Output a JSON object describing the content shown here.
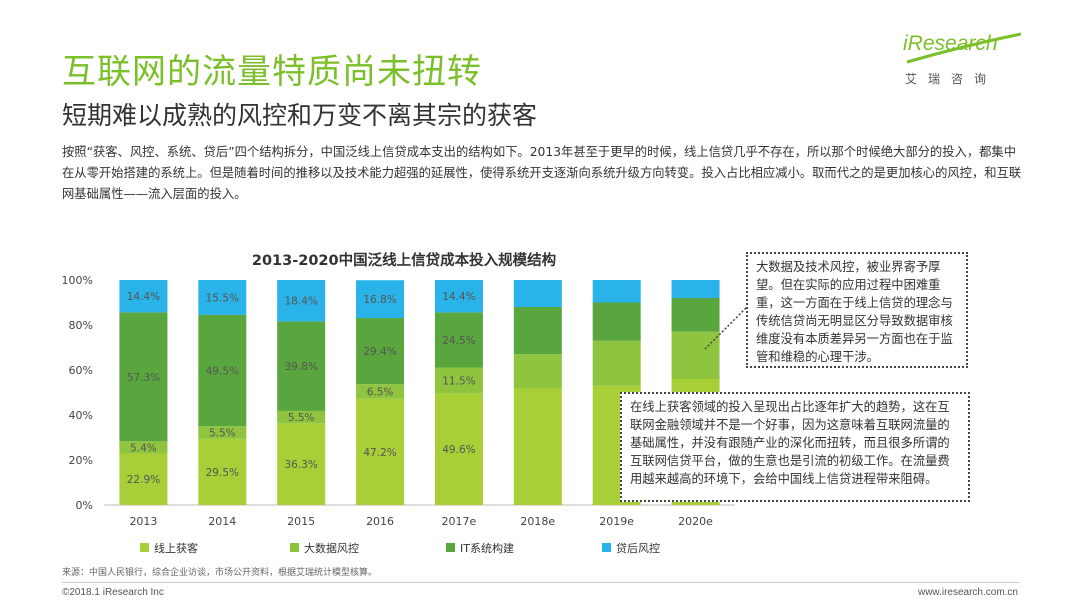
{
  "header": {
    "title": "互联网的流量特质尚未扭转",
    "subtitle": "短期难以成熟的风控和万变不离其宗的获客",
    "logo_word": "iResearch",
    "logo_sub": "艾瑞咨询"
  },
  "intro": "按照“获客、风控、系统、贷后”四个结构拆分，中国泛线上信贷成本支出的结构如下。2013年甚至于更早的时候，线上信贷几乎不存在，所以那个时候绝大部分的投入，都集中在从零开始搭建的系统上。但是随着时间的推移以及技术能力超强的延展性，使得系统开支逐渐向系统升级方向转变。投入占比相应减小。取而代之的是更加核心的风控，和互联网基础属性——流入层面的投入。",
  "colors": {
    "title_green": "#7bbf2a",
    "online_acquisition": "#a8cf38",
    "big_data_risk": "#8fc43f",
    "it_system": "#5aa63e",
    "post_loan_risk": "#2ab3e8"
  },
  "chart_data": {
    "type": "bar",
    "stacked": true,
    "title": "2013-2020中国泛线上信贷成本投入规模结构",
    "categories": [
      "2013",
      "2014",
      "2015",
      "2016",
      "2017e",
      "2018e",
      "2019e",
      "2020e"
    ],
    "ylim": [
      0,
      100
    ],
    "yticks": [
      "0%",
      "20%",
      "40%",
      "60%",
      "80%",
      "100%"
    ],
    "legend_position": "bottom",
    "series": [
      {
        "name": "线上获客",
        "color": "#a8cf38",
        "values": [
          22.9,
          29.5,
          36.3,
          47.2,
          49.6,
          52.0,
          53.0,
          56.0
        ],
        "labels": [
          "22.9%",
          "29.5%",
          "36.3%",
          "47.2%",
          "49.6%",
          "",
          "",
          ""
        ]
      },
      {
        "name": "大数据风控",
        "color": "#8fc43f",
        "values": [
          5.4,
          5.5,
          5.5,
          6.5,
          11.5,
          15.0,
          20.0,
          21.0
        ],
        "labels": [
          "5.4%",
          "5.5%",
          "5.5%",
          "6.5%",
          "11.5%",
          "",
          "",
          ""
        ]
      },
      {
        "name": "IT系统构建",
        "color": "#5aa63e",
        "values": [
          57.3,
          49.5,
          39.8,
          29.4,
          24.5,
          21.0,
          17.0,
          15.0
        ],
        "labels": [
          "57.3%",
          "49.5%",
          "39.8%",
          "29.4%",
          "24.5%",
          "",
          "",
          ""
        ]
      },
      {
        "name": "贷后风控",
        "color": "#2ab3e8",
        "values": [
          14.4,
          15.5,
          18.4,
          16.8,
          14.4,
          12.0,
          10.0,
          8.0
        ],
        "labels": [
          "14.4%",
          "15.5%",
          "18.4%",
          "16.8%",
          "14.4%",
          "",
          "",
          ""
        ]
      }
    ]
  },
  "callouts": {
    "big_data": "大数据及技术风控，被业界寄予厚望。但在实际的应用过程中困难重重，这一方面在于线上信贷的理念与传统信贷尚无明显区分导致数据审核维度没有本质差异另一方面也在于监管和维稳的心理干涉。",
    "acquisition": "在线上获客领域的投入呈现出占比逐年扩大的趋势，这在互联网金融领域并不是一个好事，因为这意味着互联网流量的基础属性，并没有跟随产业的深化而扭转，而且很多所谓的互联网信贷平台，做的生意也是引流的初级工作。在流量费用越来越高的环境下，会给中国线上信贷进程带来阻碍。"
  },
  "footer": {
    "source": "来源：中国人民银行，综合企业访谈，市场公开资料，根据艾瑞统计模型核算。",
    "copyright": "©2018.1 iResearch Inc",
    "website": "www.iresearch.com.cn"
  }
}
